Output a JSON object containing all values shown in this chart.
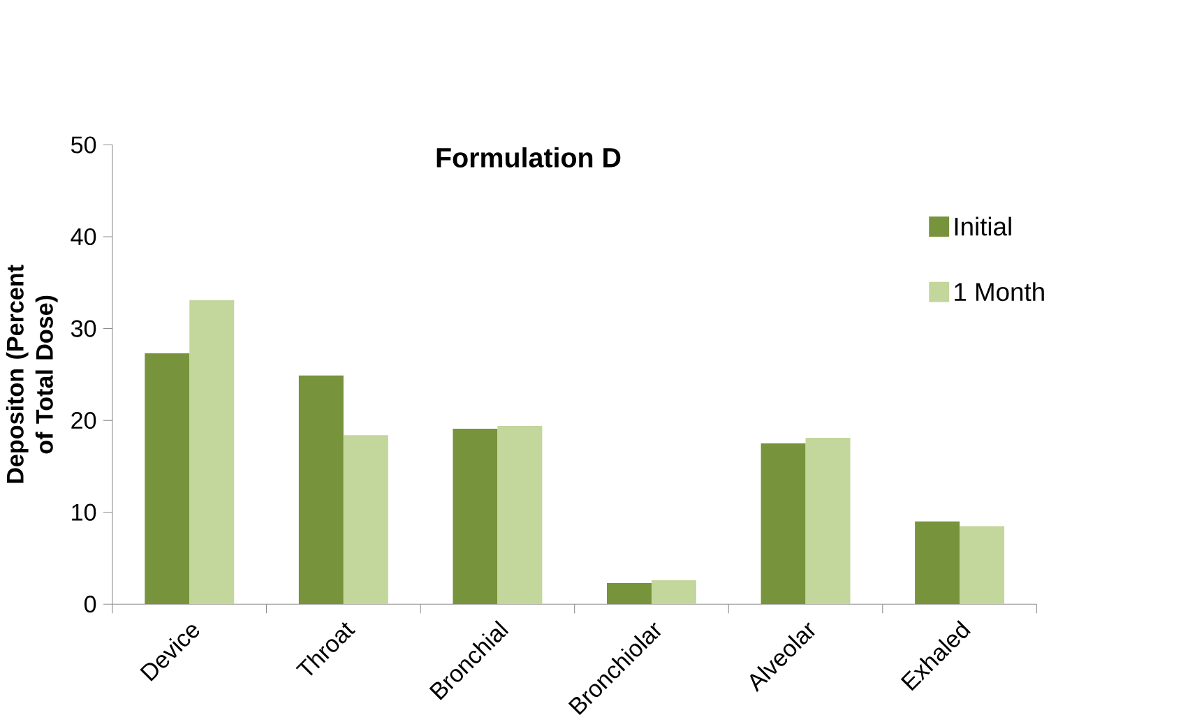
{
  "chart_data": {
    "type": "bar",
    "title": "Formulation D",
    "ylabel": "Depositon (Percent of Total Dose)",
    "categories": [
      "Device",
      "Throat",
      "Bronchial",
      "Bronchiolar",
      "Alveolar",
      "Exhaled"
    ],
    "series": [
      {
        "name": "Initial",
        "color": "#77933c",
        "values": [
          27.3,
          24.9,
          19.1,
          2.3,
          17.5,
          9.0
        ]
      },
      {
        "name": "1 Month",
        "color": "#c3d69b",
        "values": [
          33.1,
          18.4,
          19.4,
          2.6,
          18.1,
          8.5
        ]
      }
    ],
    "ylim": [
      0,
      50
    ],
    "yticks": [
      0,
      10,
      20,
      30,
      40,
      50
    ],
    "legend": "top right"
  }
}
